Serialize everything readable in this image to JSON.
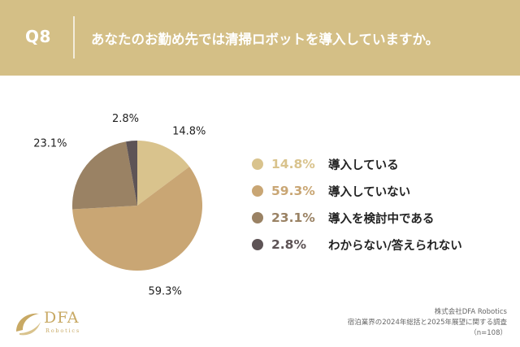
{
  "header": {
    "question_number": "Q8",
    "question": "あなたのお勤め先では清掃ロボットを導入していますか。"
  },
  "colors": {
    "header_bg": "#d4bf86",
    "slice_1": "#d9c38d",
    "slice_2": "#c9a674",
    "slice_3": "#9a8264",
    "slice_4": "#5e5456"
  },
  "chart_data": {
    "type": "pie",
    "labels": [
      "導入している",
      "導入していない",
      "導入を検討中である",
      "わからない/答えられない"
    ],
    "values": [
      14.8,
      59.3,
      23.1,
      2.8
    ],
    "display_values": [
      "14.8%",
      "59.3%",
      "23.1%",
      "2.8%"
    ],
    "colors": [
      "#d9c38d",
      "#c9a674",
      "#9a8264",
      "#5e5456"
    ],
    "start_angle": "12 o'clock",
    "direction": "clockwise",
    "legend_position": "right"
  },
  "footer": {
    "logo_text": "DFA",
    "logo_sub": "Robotics",
    "source_lines": [
      "株式会社DFA Robotics",
      "宿泊業界の2024年総括と2025年展望に関する調査",
      "（n=108）"
    ]
  }
}
